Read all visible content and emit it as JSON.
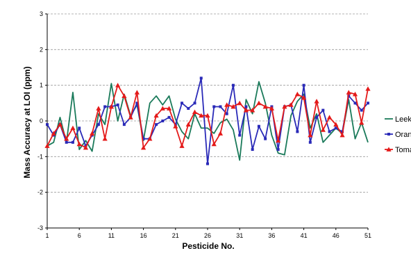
{
  "chart_data": {
    "type": "line",
    "xlabel": "Pesticide No.",
    "ylabel": "Mass Accuracy at LOI (ppm)",
    "ylim": [
      -3,
      3
    ],
    "yticks": [
      -3,
      -2,
      -1,
      0,
      1,
      2,
      3
    ],
    "xlim": [
      1,
      51
    ],
    "xticks": [
      1,
      6,
      11,
      16,
      21,
      26,
      31,
      36,
      41,
      46,
      51
    ],
    "grid": "horizontal dashed",
    "legend": "right",
    "x": [
      1,
      2,
      3,
      4,
      5,
      6,
      7,
      8,
      9,
      10,
      11,
      12,
      13,
      14,
      15,
      16,
      17,
      18,
      19,
      20,
      21,
      22,
      23,
      24,
      25,
      26,
      27,
      28,
      29,
      30,
      31,
      32,
      33,
      34,
      35,
      36,
      37,
      38,
      39,
      40,
      41,
      42,
      43,
      44,
      45,
      46,
      47,
      48,
      49,
      50,
      51
    ],
    "series": [
      {
        "name": "Leek",
        "color": "#1a7a5a",
        "marker": "none",
        "values": [
          -0.7,
          -0.6,
          0.1,
          -0.6,
          0.8,
          -0.8,
          -0.55,
          -0.85,
          0.2,
          -0.1,
          1.05,
          0.0,
          0.75,
          0.15,
          0.45,
          -0.55,
          0.5,
          0.7,
          0.45,
          0.7,
          0.05,
          -0.3,
          -0.5,
          0.2,
          -0.2,
          -0.2,
          -0.35,
          -0.05,
          0.05,
          -0.25,
          -1.1,
          0.6,
          0.2,
          1.1,
          0.5,
          -0.4,
          -0.9,
          -0.95,
          0.15,
          0.55,
          0.75,
          -0.2,
          0.2,
          -0.6,
          -0.4,
          -0.2,
          -0.35,
          0.6,
          -0.5,
          -0.05,
          -0.6
        ]
      },
      {
        "name": "Orange",
        "color": "#2a2ab8",
        "marker": "square",
        "values": [
          -0.1,
          -0.4,
          -0.1,
          -0.6,
          -0.6,
          -0.2,
          -0.7,
          -0.4,
          -0.1,
          0.4,
          0.4,
          0.45,
          -0.1,
          0.1,
          0.5,
          -0.5,
          -0.5,
          -0.1,
          0.0,
          0.1,
          -0.1,
          0.5,
          0.35,
          0.5,
          1.2,
          -1.2,
          0.4,
          0.4,
          0.2,
          1.0,
          -0.4,
          0.4,
          -0.8,
          -0.15,
          -0.5,
          0.4,
          -0.8,
          0.4,
          0.45,
          -0.3,
          1.0,
          -0.6,
          0.1,
          0.3,
          -0.3,
          -0.2,
          -0.3,
          0.7,
          0.5,
          0.3,
          0.5
        ]
      },
      {
        "name": "Tomato",
        "color": "#e41a1a",
        "marker": "triangle",
        "values": [
          -0.7,
          -0.35,
          -0.1,
          -0.5,
          -0.2,
          -0.65,
          -0.75,
          -0.35,
          0.35,
          -0.5,
          0.4,
          1.0,
          0.7,
          0.1,
          0.8,
          -0.75,
          -0.5,
          0.15,
          0.35,
          0.35,
          -0.15,
          -0.7,
          -0.1,
          0.25,
          0.15,
          0.15,
          -0.65,
          -0.35,
          0.45,
          0.4,
          0.5,
          0.3,
          0.3,
          0.5,
          0.4,
          0.35,
          -0.55,
          0.4,
          0.45,
          0.75,
          0.65,
          -0.4,
          0.55,
          -0.25,
          0.1,
          -0.1,
          -0.4,
          0.8,
          0.75,
          -0.05,
          0.9
        ]
      }
    ]
  }
}
